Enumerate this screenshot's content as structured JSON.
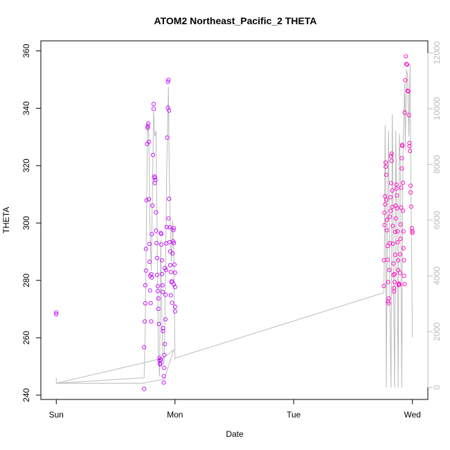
{
  "chart_data": {
    "type": "scatter",
    "title": "ATOM2 Northeast_Pacific_2 THETA",
    "xlabel": "Date",
    "ylabel": "THETA",
    "x_ticks": [
      {
        "label": "Sun",
        "value": 0
      },
      {
        "label": "Mon",
        "value": 1
      },
      {
        "label": "Tue",
        "value": 2
      },
      {
        "label": "Wed",
        "value": 3
      }
    ],
    "x_units": "days",
    "xlim": [
      -0.13,
      3.13
    ],
    "y_ticks": [
      240,
      260,
      280,
      300,
      320,
      340,
      360
    ],
    "ylim": [
      238.5,
      363.5
    ],
    "y2_ticks": [
      0,
      2000,
      4000,
      6000,
      8000,
      10000,
      12000
    ],
    "y2lim": [
      -430,
      12430
    ],
    "grid": false,
    "colors": {
      "points_a": "#c000ff",
      "points_b": "#ff00c0",
      "line": "#bbbbbb",
      "axis": "#000000",
      "axis_right": "#bbbbbb"
    },
    "series": [
      {
        "color": "#c000ff",
        "points": [
          [
            0.0,
            268.8
          ],
          [
            0.0,
            268.2
          ],
          [
            0.74,
            242.2
          ],
          [
            0.74,
            256.7
          ],
          [
            0.745,
            265.7
          ],
          [
            0.75,
            272.0
          ],
          [
            0.75,
            278.3
          ],
          [
            0.755,
            283.4
          ],
          [
            0.755,
            291.0
          ],
          [
            0.76,
            307.9
          ],
          [
            0.765,
            327.6
          ],
          [
            0.77,
            333.2
          ],
          [
            0.77,
            333.7
          ],
          [
            0.775,
            334.7
          ],
          [
            0.78,
            328.3
          ],
          [
            0.78,
            308.3
          ],
          [
            0.785,
            292.7
          ],
          [
            0.785,
            286.5
          ],
          [
            0.79,
            281.6
          ],
          [
            0.79,
            276.5
          ],
          [
            0.795,
            272.1
          ],
          [
            0.8,
            265.7
          ],
          [
            0.8,
            282.2
          ],
          [
            0.805,
            281.0
          ],
          [
            0.805,
            296.1
          ],
          [
            0.81,
            306.1
          ],
          [
            0.815,
            323.7
          ],
          [
            0.82,
            341.5
          ],
          [
            0.82,
            339.8
          ],
          [
            0.825,
            316.2
          ],
          [
            0.83,
            315.8
          ],
          [
            0.83,
            313.9
          ],
          [
            0.835,
            315.0
          ],
          [
            0.84,
            297.3
          ],
          [
            0.84,
            303.7
          ],
          [
            0.845,
            293.0
          ],
          [
            0.85,
            287.8
          ],
          [
            0.85,
            281.9
          ],
          [
            0.855,
            278.0
          ],
          [
            0.855,
            276.3
          ],
          [
            0.86,
            273.7
          ],
          [
            0.86,
            270.1
          ],
          [
            0.865,
            264.8
          ],
          [
            0.87,
            253.0
          ],
          [
            0.87,
            252.1
          ],
          [
            0.875,
            251.1
          ],
          [
            0.875,
            250.7
          ],
          [
            0.88,
            252.4
          ],
          [
            0.88,
            296.5
          ],
          [
            0.885,
            296.2
          ],
          [
            0.885,
            292.5
          ],
          [
            0.89,
            287.0
          ],
          [
            0.89,
            282.2
          ],
          [
            0.895,
            278.3
          ],
          [
            0.895,
            276.0
          ],
          [
            0.9,
            262.3
          ],
          [
            0.9,
            263.3
          ],
          [
            0.905,
            244.4
          ],
          [
            0.905,
            246.6
          ],
          [
            0.91,
            249.5
          ],
          [
            0.91,
            254.0
          ],
          [
            0.915,
            257.8
          ],
          [
            0.92,
            266.4
          ],
          [
            0.92,
            275.0
          ],
          [
            0.925,
            283.6
          ],
          [
            0.925,
            292.9
          ],
          [
            0.93,
            298.6
          ],
          [
            0.935,
            329.8
          ],
          [
            0.94,
            340.2
          ],
          [
            0.94,
            349.2
          ],
          [
            0.945,
            349.9
          ],
          [
            0.95,
            339.2
          ],
          [
            0.95,
            308.4
          ],
          [
            0.955,
            298.5
          ],
          [
            0.955,
            293.3
          ],
          [
            0.96,
            290.1
          ],
          [
            0.96,
            285.3
          ],
          [
            0.965,
            282.9
          ],
          [
            0.97,
            279.4
          ],
          [
            0.975,
            279.7
          ],
          [
            0.98,
            289.4
          ],
          [
            0.985,
            293.6
          ],
          [
            0.985,
            297.5
          ],
          [
            0.99,
            298.2
          ],
          [
            0.99,
            293.0
          ],
          [
            0.995,
            285.5
          ],
          [
            1.0,
            282.7
          ],
          [
            1.0,
            277.7
          ],
          [
            1.0,
            270.8
          ],
          [
            1.0,
            269.2
          ],
          [
            0.99,
            278.6
          ],
          [
            0.975,
            272.2
          ],
          [
            0.965,
            274.8
          ],
          [
            0.945,
            301.6
          ],
          [
            0.915,
            284.3
          ]
        ]
      },
      {
        "color": "#ff00c0",
        "points": [
          [
            2.76,
            278.1
          ],
          [
            2.76,
            287.0
          ],
          [
            2.765,
            299.3
          ],
          [
            2.765,
            303.6
          ],
          [
            2.77,
            306.5
          ],
          [
            2.77,
            309.3
          ],
          [
            2.775,
            319.6
          ],
          [
            2.775,
            321.1
          ],
          [
            2.78,
            316.8
          ],
          [
            2.78,
            308.1
          ],
          [
            2.785,
            301.1
          ],
          [
            2.785,
            297.5
          ],
          [
            2.79,
            292.0
          ],
          [
            2.79,
            287.2
          ],
          [
            2.795,
            279.4
          ],
          [
            2.795,
            272.7
          ],
          [
            2.8,
            272.0
          ],
          [
            2.8,
            273.7
          ],
          [
            2.805,
            283.6
          ],
          [
            2.81,
            293.0
          ],
          [
            2.81,
            302.2
          ],
          [
            2.815,
            304.2
          ],
          [
            2.815,
            309.0
          ],
          [
            2.82,
            313.9
          ],
          [
            2.82,
            323.3
          ],
          [
            2.825,
            324.2
          ],
          [
            2.825,
            321.7
          ],
          [
            2.83,
            311.3
          ],
          [
            2.83,
            305.6
          ],
          [
            2.835,
            299.0
          ],
          [
            2.835,
            292.8
          ],
          [
            2.84,
            285.9
          ],
          [
            2.84,
            281.9
          ],
          [
            2.845,
            277.3
          ],
          [
            2.845,
            276.1
          ],
          [
            2.85,
            279.4
          ],
          [
            2.85,
            282.2
          ],
          [
            2.855,
            288.9
          ],
          [
            2.855,
            296.9
          ],
          [
            2.86,
            301.6
          ],
          [
            2.86,
            306.1
          ],
          [
            2.865,
            312.0
          ],
          [
            2.865,
            313.4
          ],
          [
            2.87,
            309.6
          ],
          [
            2.87,
            305.1
          ],
          [
            2.875,
            297.1
          ],
          [
            2.875,
            293.3
          ],
          [
            2.88,
            287.0
          ],
          [
            2.88,
            283.6
          ],
          [
            2.885,
            278.9
          ],
          [
            2.885,
            278.4
          ],
          [
            2.89,
            278.5
          ],
          [
            2.895,
            282.6
          ],
          [
            2.895,
            289.1
          ],
          [
            2.9,
            294.5
          ],
          [
            2.9,
            299.5
          ],
          [
            2.905,
            305.4
          ],
          [
            2.905,
            312.3
          ],
          [
            2.91,
            319.0
          ],
          [
            2.91,
            322.6
          ],
          [
            2.915,
            326.9
          ],
          [
            2.915,
            327.2
          ],
          [
            2.92,
            314.0
          ],
          [
            2.92,
            304.3
          ],
          [
            2.925,
            297.1
          ],
          [
            2.925,
            291.2
          ],
          [
            2.93,
            287.0
          ],
          [
            2.93,
            281.6
          ],
          [
            2.935,
            278.7
          ],
          [
            2.935,
            338.5
          ],
          [
            2.94,
            349.8
          ],
          [
            2.945,
            358.1
          ],
          [
            2.95,
            355.4
          ],
          [
            2.955,
            355.2
          ],
          [
            2.96,
            346.1
          ],
          [
            2.965,
            345.9
          ],
          [
            2.97,
            337.6
          ],
          [
            2.975,
            327.9
          ],
          [
            2.975,
            326.8
          ],
          [
            2.98,
            325.1
          ],
          [
            2.985,
            313.0
          ],
          [
            2.985,
            310.7
          ],
          [
            2.99,
            305.7
          ],
          [
            2.995,
            298.2
          ],
          [
            3.0,
            297.1
          ],
          [
            3.0,
            296.6
          ]
        ]
      }
    ],
    "line_series": {
      "color": "#bbbbbb",
      "axis": "right",
      "points": [
        [
          0.0,
          350
        ],
        [
          0.0,
          150
        ],
        [
          0.9,
          1050
        ],
        [
          0.99,
          1350
        ],
        [
          0.91,
          300
        ],
        [
          0.73,
          150
        ],
        [
          0.0,
          150
        ],
        [
          0.74,
          350
        ],
        [
          0.75,
          2200
        ],
        [
          0.76,
          6200
        ],
        [
          0.77,
          9500
        ],
        [
          0.78,
          9000
        ],
        [
          0.79,
          5500
        ],
        [
          0.8,
          4200
        ],
        [
          0.81,
          7000
        ],
        [
          0.82,
          9900
        ],
        [
          0.83,
          9000
        ],
        [
          0.84,
          9200
        ],
        [
          0.85,
          5500
        ],
        [
          0.86,
          1200
        ],
        [
          0.87,
          400
        ],
        [
          0.88,
          5300
        ],
        [
          0.89,
          2400
        ],
        [
          0.9,
          800
        ],
        [
          0.91,
          1000
        ],
        [
          0.92,
          4000
        ],
        [
          0.93,
          7800
        ],
        [
          0.94,
          9700
        ],
        [
          0.945,
          10800
        ],
        [
          0.95,
          8300
        ],
        [
          0.96,
          5800
        ],
        [
          0.97,
          4500
        ],
        [
          0.98,
          6000
        ],
        [
          0.99,
          4800
        ],
        [
          1.0,
          1000
        ],
        [
          1.0,
          1050
        ],
        [
          2.76,
          3400
        ],
        [
          2.765,
          5500
        ],
        [
          2.77,
          9400
        ],
        [
          2.775,
          7200
        ],
        [
          2.78,
          0
        ],
        [
          2.79,
          6500
        ],
        [
          2.8,
          9200
        ],
        [
          2.81,
          3000
        ],
        [
          2.82,
          0
        ],
        [
          2.83,
          9800
        ],
        [
          2.835,
          8100
        ],
        [
          2.84,
          4000
        ],
        [
          2.85,
          0
        ],
        [
          2.86,
          9200
        ],
        [
          2.87,
          5600
        ],
        [
          2.88,
          0
        ],
        [
          2.89,
          9100
        ],
        [
          2.9,
          7800
        ],
        [
          2.905,
          3600
        ],
        [
          2.91,
          0
        ],
        [
          2.92,
          8400
        ],
        [
          2.93,
          10100
        ],
        [
          2.935,
          10900
        ],
        [
          2.94,
          8500
        ],
        [
          2.95,
          11400
        ],
        [
          2.96,
          11200
        ],
        [
          2.97,
          9000
        ],
        [
          2.98,
          11600
        ],
        [
          2.99,
          6000
        ],
        [
          3.0,
          1800
        ]
      ]
    }
  }
}
